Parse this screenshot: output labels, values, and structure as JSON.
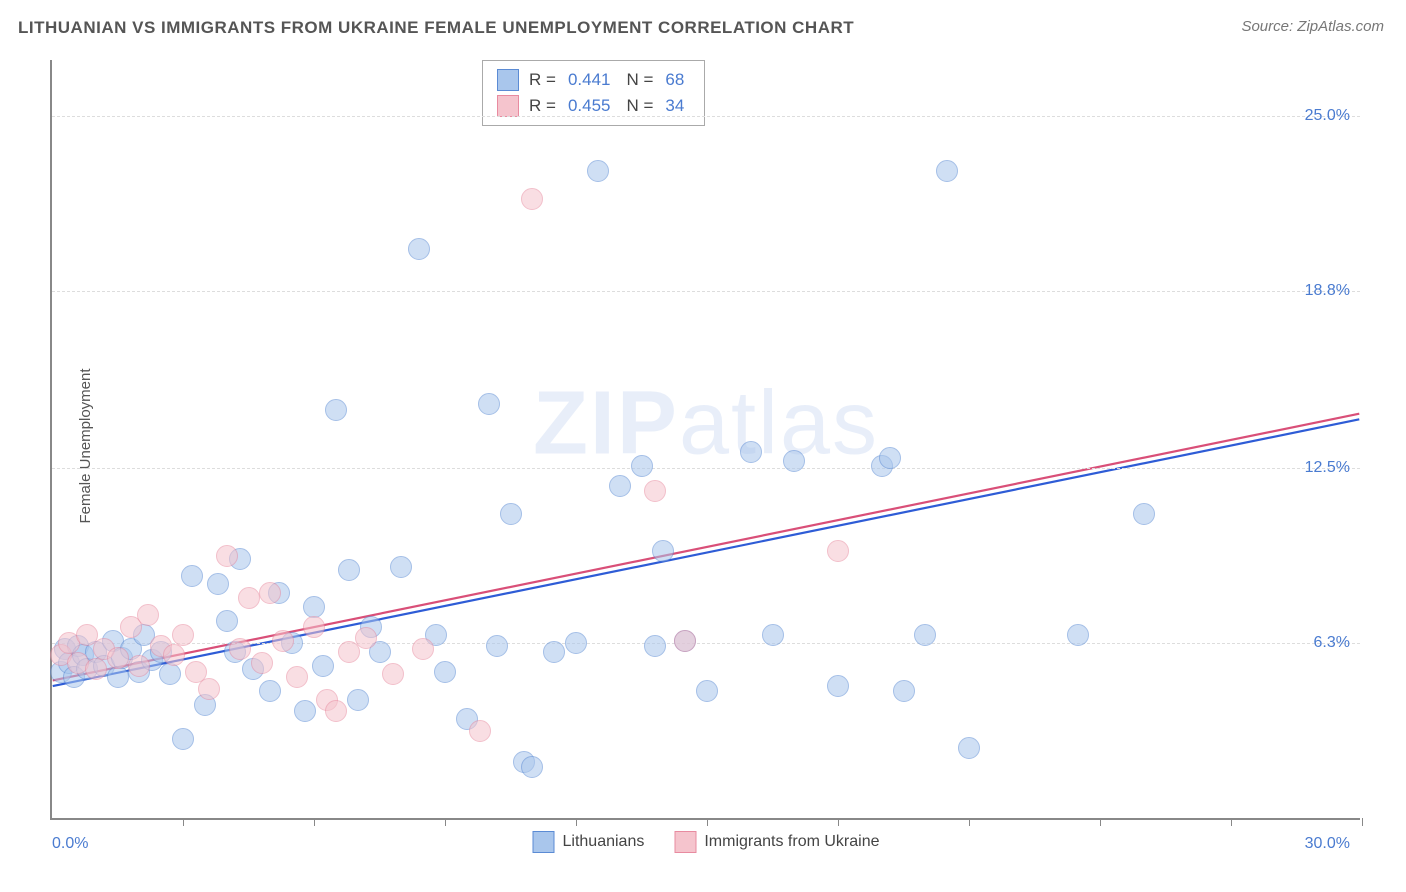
{
  "title": "LITHUANIAN VS IMMIGRANTS FROM UKRAINE FEMALE UNEMPLOYMENT CORRELATION CHART",
  "source": "Source: ZipAtlas.com",
  "ylabel": "Female Unemployment",
  "watermark_bold": "ZIP",
  "watermark_light": "atlas",
  "chart": {
    "type": "scatter",
    "background_color": "#ffffff",
    "grid_color": "#dddddd",
    "axis_color": "#888888",
    "tick_label_color": "#4a7bd0",
    "text_color": "#555555",
    "xlim": [
      0,
      30
    ],
    "ylim": [
      0,
      27
    ],
    "xlim_labels": [
      "0.0%",
      "30.0%"
    ],
    "ytick_values": [
      6.3,
      12.5,
      18.8,
      25.0
    ],
    "ytick_labels": [
      "6.3%",
      "12.5%",
      "18.8%",
      "25.0%"
    ],
    "xtick_positions": [
      3,
      6,
      9,
      12,
      15,
      18,
      21,
      24,
      27,
      30
    ],
    "marker_radius": 11,
    "marker_opacity": 0.55,
    "series": [
      {
        "name": "Lithuanians",
        "fill_color": "#a9c6ec",
        "stroke_color": "#5b8bd4",
        "r_label": "R  =",
        "r_value": "0.441",
        "n_label": "N  =",
        "n_value": "68",
        "trend": {
          "x1": 0,
          "y1": 4.7,
          "x2": 30,
          "y2": 14.2,
          "color": "#2e5cd6",
          "width": 2.2
        },
        "points": [
          [
            0.2,
            5.2
          ],
          [
            0.3,
            6.0
          ],
          [
            0.4,
            5.5
          ],
          [
            0.5,
            5.0
          ],
          [
            0.6,
            6.1
          ],
          [
            0.7,
            5.8
          ],
          [
            0.8,
            5.3
          ],
          [
            1.0,
            5.9
          ],
          [
            1.2,
            5.4
          ],
          [
            1.4,
            6.3
          ],
          [
            1.5,
            5.0
          ],
          [
            1.6,
            5.7
          ],
          [
            1.8,
            6.0
          ],
          [
            2.0,
            5.2
          ],
          [
            2.1,
            6.5
          ],
          [
            2.3,
            5.6
          ],
          [
            2.5,
            5.9
          ],
          [
            2.7,
            5.1
          ],
          [
            3.0,
            2.8
          ],
          [
            3.2,
            8.6
          ],
          [
            3.5,
            4.0
          ],
          [
            3.8,
            8.3
          ],
          [
            4.0,
            7.0
          ],
          [
            4.2,
            5.9
          ],
          [
            4.3,
            9.2
          ],
          [
            4.6,
            5.3
          ],
          [
            5.0,
            4.5
          ],
          [
            5.2,
            8.0
          ],
          [
            5.5,
            6.2
          ],
          [
            5.8,
            3.8
          ],
          [
            6.0,
            7.5
          ],
          [
            6.2,
            5.4
          ],
          [
            6.5,
            14.5
          ],
          [
            6.8,
            8.8
          ],
          [
            7.0,
            4.2
          ],
          [
            7.3,
            6.8
          ],
          [
            7.5,
            5.9
          ],
          [
            8.0,
            8.9
          ],
          [
            8.4,
            20.2
          ],
          [
            8.8,
            6.5
          ],
          [
            9.0,
            5.2
          ],
          [
            9.5,
            3.5
          ],
          [
            10.0,
            14.7
          ],
          [
            10.2,
            6.1
          ],
          [
            10.5,
            10.8
          ],
          [
            10.8,
            2.0
          ],
          [
            11.5,
            5.9
          ],
          [
            12.0,
            6.2
          ],
          [
            12.5,
            23.0
          ],
          [
            13.0,
            11.8
          ],
          [
            13.5,
            12.5
          ],
          [
            14.0,
            9.5
          ],
          [
            14.5,
            6.3
          ],
          [
            15.0,
            4.5
          ],
          [
            16.0,
            13.0
          ],
          [
            16.5,
            6.5
          ],
          [
            17.0,
            12.7
          ],
          [
            18.0,
            4.7
          ],
          [
            19.0,
            12.5
          ],
          [
            19.5,
            4.5
          ],
          [
            20.0,
            6.5
          ],
          [
            20.5,
            23.0
          ],
          [
            21.0,
            2.5
          ],
          [
            23.5,
            6.5
          ],
          [
            25.0,
            10.8
          ],
          [
            19.2,
            12.8
          ],
          [
            13.8,
            6.1
          ],
          [
            11.0,
            1.8
          ]
        ]
      },
      {
        "name": "Immigrants from Ukraine",
        "fill_color": "#f5c4cd",
        "stroke_color": "#e88ba0",
        "r_label": "R  =",
        "r_value": "0.455",
        "n_label": "N  =",
        "n_value": "34",
        "trend": {
          "x1": 0,
          "y1": 4.9,
          "x2": 30,
          "y2": 14.4,
          "color": "#d94f78",
          "width": 2.2
        },
        "points": [
          [
            0.2,
            5.8
          ],
          [
            0.4,
            6.2
          ],
          [
            0.6,
            5.5
          ],
          [
            0.8,
            6.5
          ],
          [
            1.0,
            5.3
          ],
          [
            1.2,
            6.0
          ],
          [
            1.5,
            5.7
          ],
          [
            1.8,
            6.8
          ],
          [
            2.0,
            5.4
          ],
          [
            2.2,
            7.2
          ],
          [
            2.5,
            6.1
          ],
          [
            2.8,
            5.8
          ],
          [
            3.0,
            6.5
          ],
          [
            3.3,
            5.2
          ],
          [
            3.6,
            4.6
          ],
          [
            4.0,
            9.3
          ],
          [
            4.3,
            6.0
          ],
          [
            4.5,
            7.8
          ],
          [
            4.8,
            5.5
          ],
          [
            5.0,
            8.0
          ],
          [
            5.3,
            6.3
          ],
          [
            5.6,
            5.0
          ],
          [
            6.0,
            6.8
          ],
          [
            6.3,
            4.2
          ],
          [
            6.8,
            5.9
          ],
          [
            7.2,
            6.4
          ],
          [
            7.8,
            5.1
          ],
          [
            8.5,
            6.0
          ],
          [
            9.8,
            3.1
          ],
          [
            11.0,
            22.0
          ],
          [
            13.8,
            11.6
          ],
          [
            14.5,
            6.3
          ],
          [
            18.0,
            9.5
          ],
          [
            6.5,
            3.8
          ]
        ]
      }
    ],
    "bottom_legend": [
      {
        "label": "Lithuanians",
        "fill": "#a9c6ec",
        "stroke": "#5b8bd4"
      },
      {
        "label": "Immigrants from Ukraine",
        "fill": "#f5c4cd",
        "stroke": "#e88ba0"
      }
    ]
  }
}
